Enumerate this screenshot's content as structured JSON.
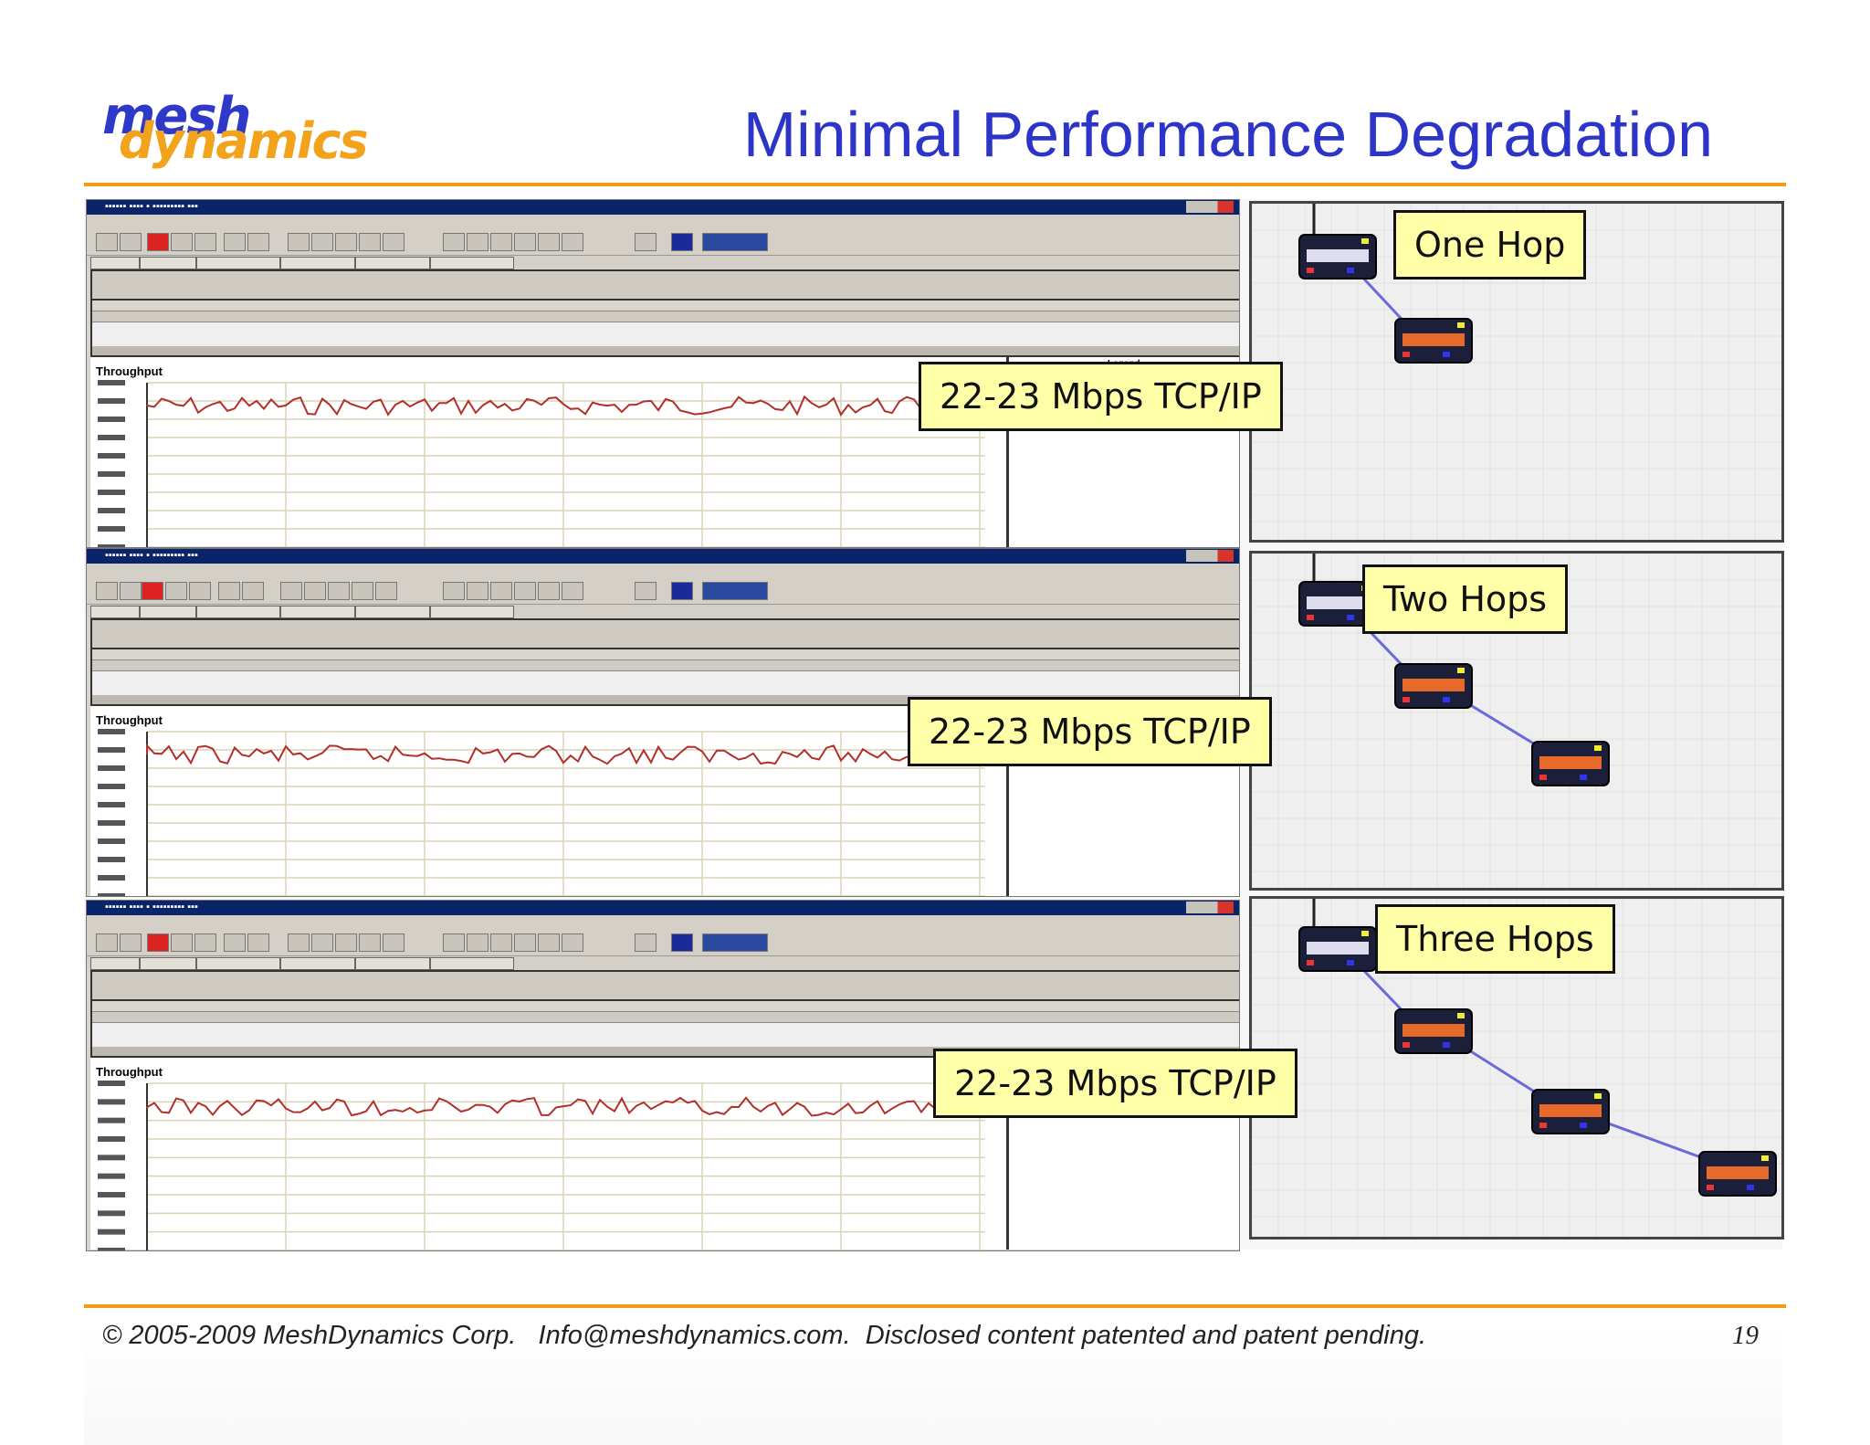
{
  "slide": {
    "title": "Minimal Performance Degradation",
    "logo": {
      "line1": "mesh",
      "line2": "dynamics"
    },
    "footer": "© 2005-2009 MeshDynamics Corp.   Info@meshdynamics.com.  Disclosed content patented and patent pending.",
    "page_number": "19"
  },
  "windows": [
    {
      "chart_label": "Throughput",
      "legend_label": "Legend",
      "callout": "22-23 Mbps TCP/IP"
    },
    {
      "chart_label": "Throughput",
      "legend_label": "",
      "callout": "22-23 Mbps TCP/IP"
    },
    {
      "chart_label": "Throughput",
      "legend_label": "",
      "callout": "22-23 Mbps TCP/IP"
    }
  ],
  "topologies": [
    {
      "label": "One Hop",
      "nodes": 2
    },
    {
      "label": "Two Hops",
      "nodes": 3
    },
    {
      "label": "Three Hops",
      "nodes": 4
    }
  ],
  "colors": {
    "title": "#2d35c8",
    "accent_rule": "#f39c12",
    "callout_bg": "#ffffa8",
    "trace": "#b0302a",
    "link": "#6a6ad8"
  }
}
